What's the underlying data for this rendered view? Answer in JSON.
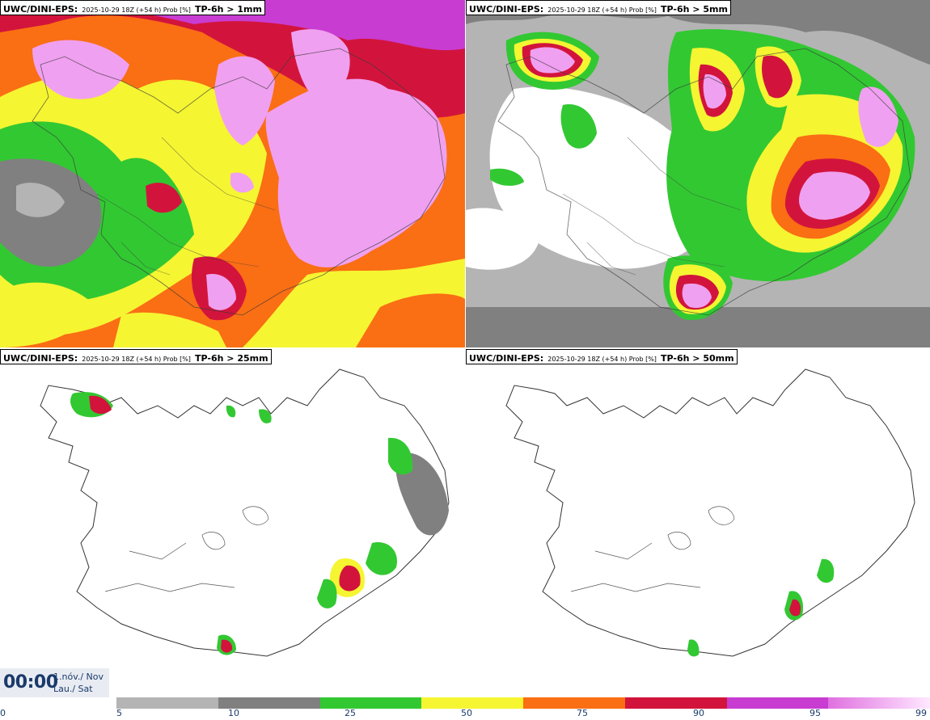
{
  "panels": [
    {
      "model": "UWC/DINI-EPS:",
      "run": "2025-10-29 18Z (+54 h) Prob [%]",
      "threshold": "TP-6h > 1mm"
    },
    {
      "model": "UWC/DINI-EPS:",
      "run": "2025-10-29 18Z (+54 h) Prob [%]",
      "threshold": "TP-6h > 5mm"
    },
    {
      "model": "UWC/DINI-EPS:",
      "run": "2025-10-29 18Z (+54 h) Prob [%]",
      "threshold": "TP-6h > 25mm"
    },
    {
      "model": "UWC/DINI-EPS:",
      "run": "2025-10-29 18Z (+54 h) Prob [%]",
      "threshold": "TP-6h > 50mm"
    }
  ],
  "valid_time": {
    "time": "00:00",
    "date_line1": "1.nóv./ Nov",
    "date_line2": "Lau./ Sat"
  },
  "legend": {
    "ticks": [
      "0",
      "5",
      "10",
      "25",
      "50",
      "75",
      "90",
      "95",
      "99"
    ],
    "colors": [
      "#b4b4b4",
      "#808080",
      "#32c832",
      "#f5f532",
      "#fa6e14",
      "#d2143c",
      "#c83cd2",
      "#f0a0f0"
    ]
  }
}
